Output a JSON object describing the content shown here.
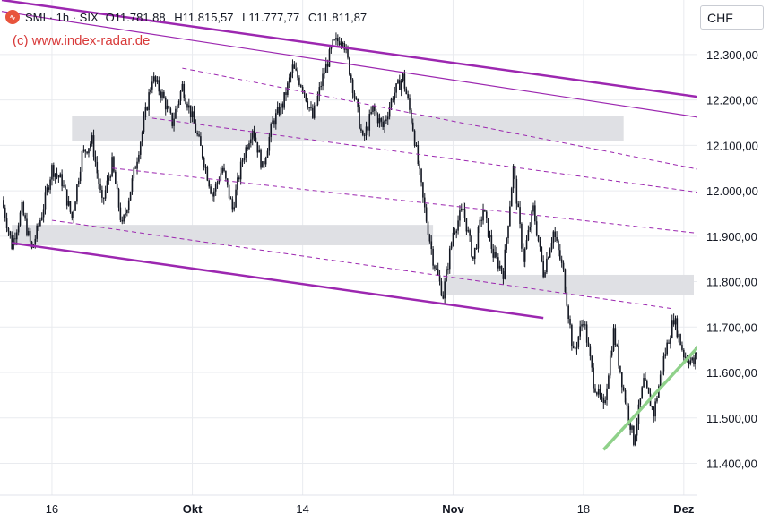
{
  "header": {
    "logo_icon": "index-logo-icon",
    "symbol": "SMI · 1h · SIX",
    "open": "O11.781,88",
    "high": "H11.815,57",
    "low": "L11.777,77",
    "close": "C11.811,87"
  },
  "watermark": "(c) www.index-radar.de",
  "currency": "CHF",
  "chart_data": {
    "type": "candlestick",
    "interval": "1h",
    "y_axis": {
      "ticks": [
        11400,
        11500,
        11600,
        11700,
        11800,
        11900,
        12000,
        12100,
        12200,
        12300
      ],
      "tick_labels": [
        "11.400,00",
        "11.500,00",
        "11.600,00",
        "11.700,00",
        "11.800,00",
        "11.900,00",
        "12.000,00",
        "12.100,00",
        "12.200,00",
        "12.300,00"
      ],
      "range": [
        11330,
        12420
      ]
    },
    "x_axis": {
      "tick_labels": [
        "16",
        "Okt",
        "14",
        "Nov",
        "18",
        "Dez"
      ],
      "tick_index": [
        5,
        19,
        30,
        45,
        58,
        68
      ],
      "range_index": [
        0,
        69
      ]
    },
    "price_path": [
      [
        0,
        11980
      ],
      [
        1,
        11880
      ],
      [
        2,
        11960
      ],
      [
        3,
        11870
      ],
      [
        4,
        11950
      ],
      [
        5,
        12050
      ],
      [
        6,
        12020
      ],
      [
        7,
        11940
      ],
      [
        8,
        12080
      ],
      [
        9,
        12110
      ],
      [
        10,
        11970
      ],
      [
        11,
        12060
      ],
      [
        12,
        11920
      ],
      [
        13,
        12020
      ],
      [
        14,
        12130
      ],
      [
        15,
        12250
      ],
      [
        16,
        12210
      ],
      [
        17,
        12150
      ],
      [
        18,
        12230
      ],
      [
        19,
        12160
      ],
      [
        20,
        12080
      ],
      [
        21,
        11990
      ],
      [
        22,
        12050
      ],
      [
        23,
        11960
      ],
      [
        24,
        12070
      ],
      [
        25,
        12140
      ],
      [
        26,
        12050
      ],
      [
        27,
        12150
      ],
      [
        28,
        12190
      ],
      [
        29,
        12270
      ],
      [
        30,
        12230
      ],
      [
        31,
        12160
      ],
      [
        32,
        12250
      ],
      [
        33,
        12320
      ],
      [
        34,
        12340
      ],
      [
        35,
        12230
      ],
      [
        36,
        12110
      ],
      [
        37,
        12180
      ],
      [
        38,
        12140
      ],
      [
        39,
        12210
      ],
      [
        40,
        12250
      ],
      [
        41,
        12140
      ],
      [
        42,
        11980
      ],
      [
        43,
        11850
      ],
      [
        44,
        11770
      ],
      [
        45,
        11910
      ],
      [
        46,
        11960
      ],
      [
        47,
        11850
      ],
      [
        48,
        11960
      ],
      [
        49,
        11860
      ],
      [
        50,
        11820
      ],
      [
        51,
        12050
      ],
      [
        52,
        11850
      ],
      [
        53,
        11960
      ],
      [
        54,
        11820
      ],
      [
        55,
        11910
      ],
      [
        56,
        11820
      ],
      [
        57,
        11640
      ],
      [
        58,
        11720
      ],
      [
        59,
        11580
      ],
      [
        60,
        11520
      ],
      [
        61,
        11690
      ],
      [
        62,
        11560
      ],
      [
        63,
        11450
      ],
      [
        64,
        11580
      ],
      [
        65,
        11510
      ],
      [
        66,
        11630
      ],
      [
        67,
        11720
      ],
      [
        68,
        11640
      ],
      [
        69,
        11620
      ],
      [
        70,
        11700
      ],
      [
        71,
        11810
      ]
    ],
    "last_price": 11811.87,
    "zones": [
      {
        "x": [
          7,
          62
        ],
        "y": [
          12110,
          12165
        ]
      },
      {
        "x": [
          1,
          43
        ],
        "y": [
          11880,
          11925
        ]
      },
      {
        "x": [
          44,
          69
        ],
        "y": [
          11770,
          11815
        ]
      }
    ],
    "lines": [
      {
        "from": [
          0,
          12420
        ],
        "to": [
          70,
          12205
        ],
        "style": "solid-thick",
        "color": "#9c27b0"
      },
      {
        "from": [
          0,
          12395
        ],
        "to": [
          70,
          12160
        ],
        "style": "solid-thin",
        "color": "#9c27b0"
      },
      {
        "from": [
          1,
          11885
        ],
        "to": [
          54,
          11720
        ],
        "style": "solid-thick",
        "color": "#9c27b0"
      },
      {
        "from": [
          18,
          12270
        ],
        "to": [
          70,
          12045
        ],
        "style": "dashed",
        "color": "#9c27b0"
      },
      {
        "from": [
          15,
          12160
        ],
        "to": [
          70,
          11995
        ],
        "style": "dashed",
        "color": "#9c27b0"
      },
      {
        "from": [
          11,
          12050
        ],
        "to": [
          70,
          11905
        ],
        "style": "dashed",
        "color": "#9c27b0"
      },
      {
        "from": [
          5,
          11935
        ],
        "to": [
          67,
          11740
        ],
        "style": "dashed",
        "color": "#9c27b0"
      },
      {
        "from": [
          60,
          11430
        ],
        "to": [
          70,
          11670
        ],
        "style": "trend",
        "color": "#8fd18a"
      }
    ],
    "colors": {
      "candle": "#131722",
      "zone": "#dfe0e4",
      "channel": "#9c27b0",
      "trend_support": "#8fd18a",
      "grid": "#e9ebef"
    },
    "grid": true
  }
}
